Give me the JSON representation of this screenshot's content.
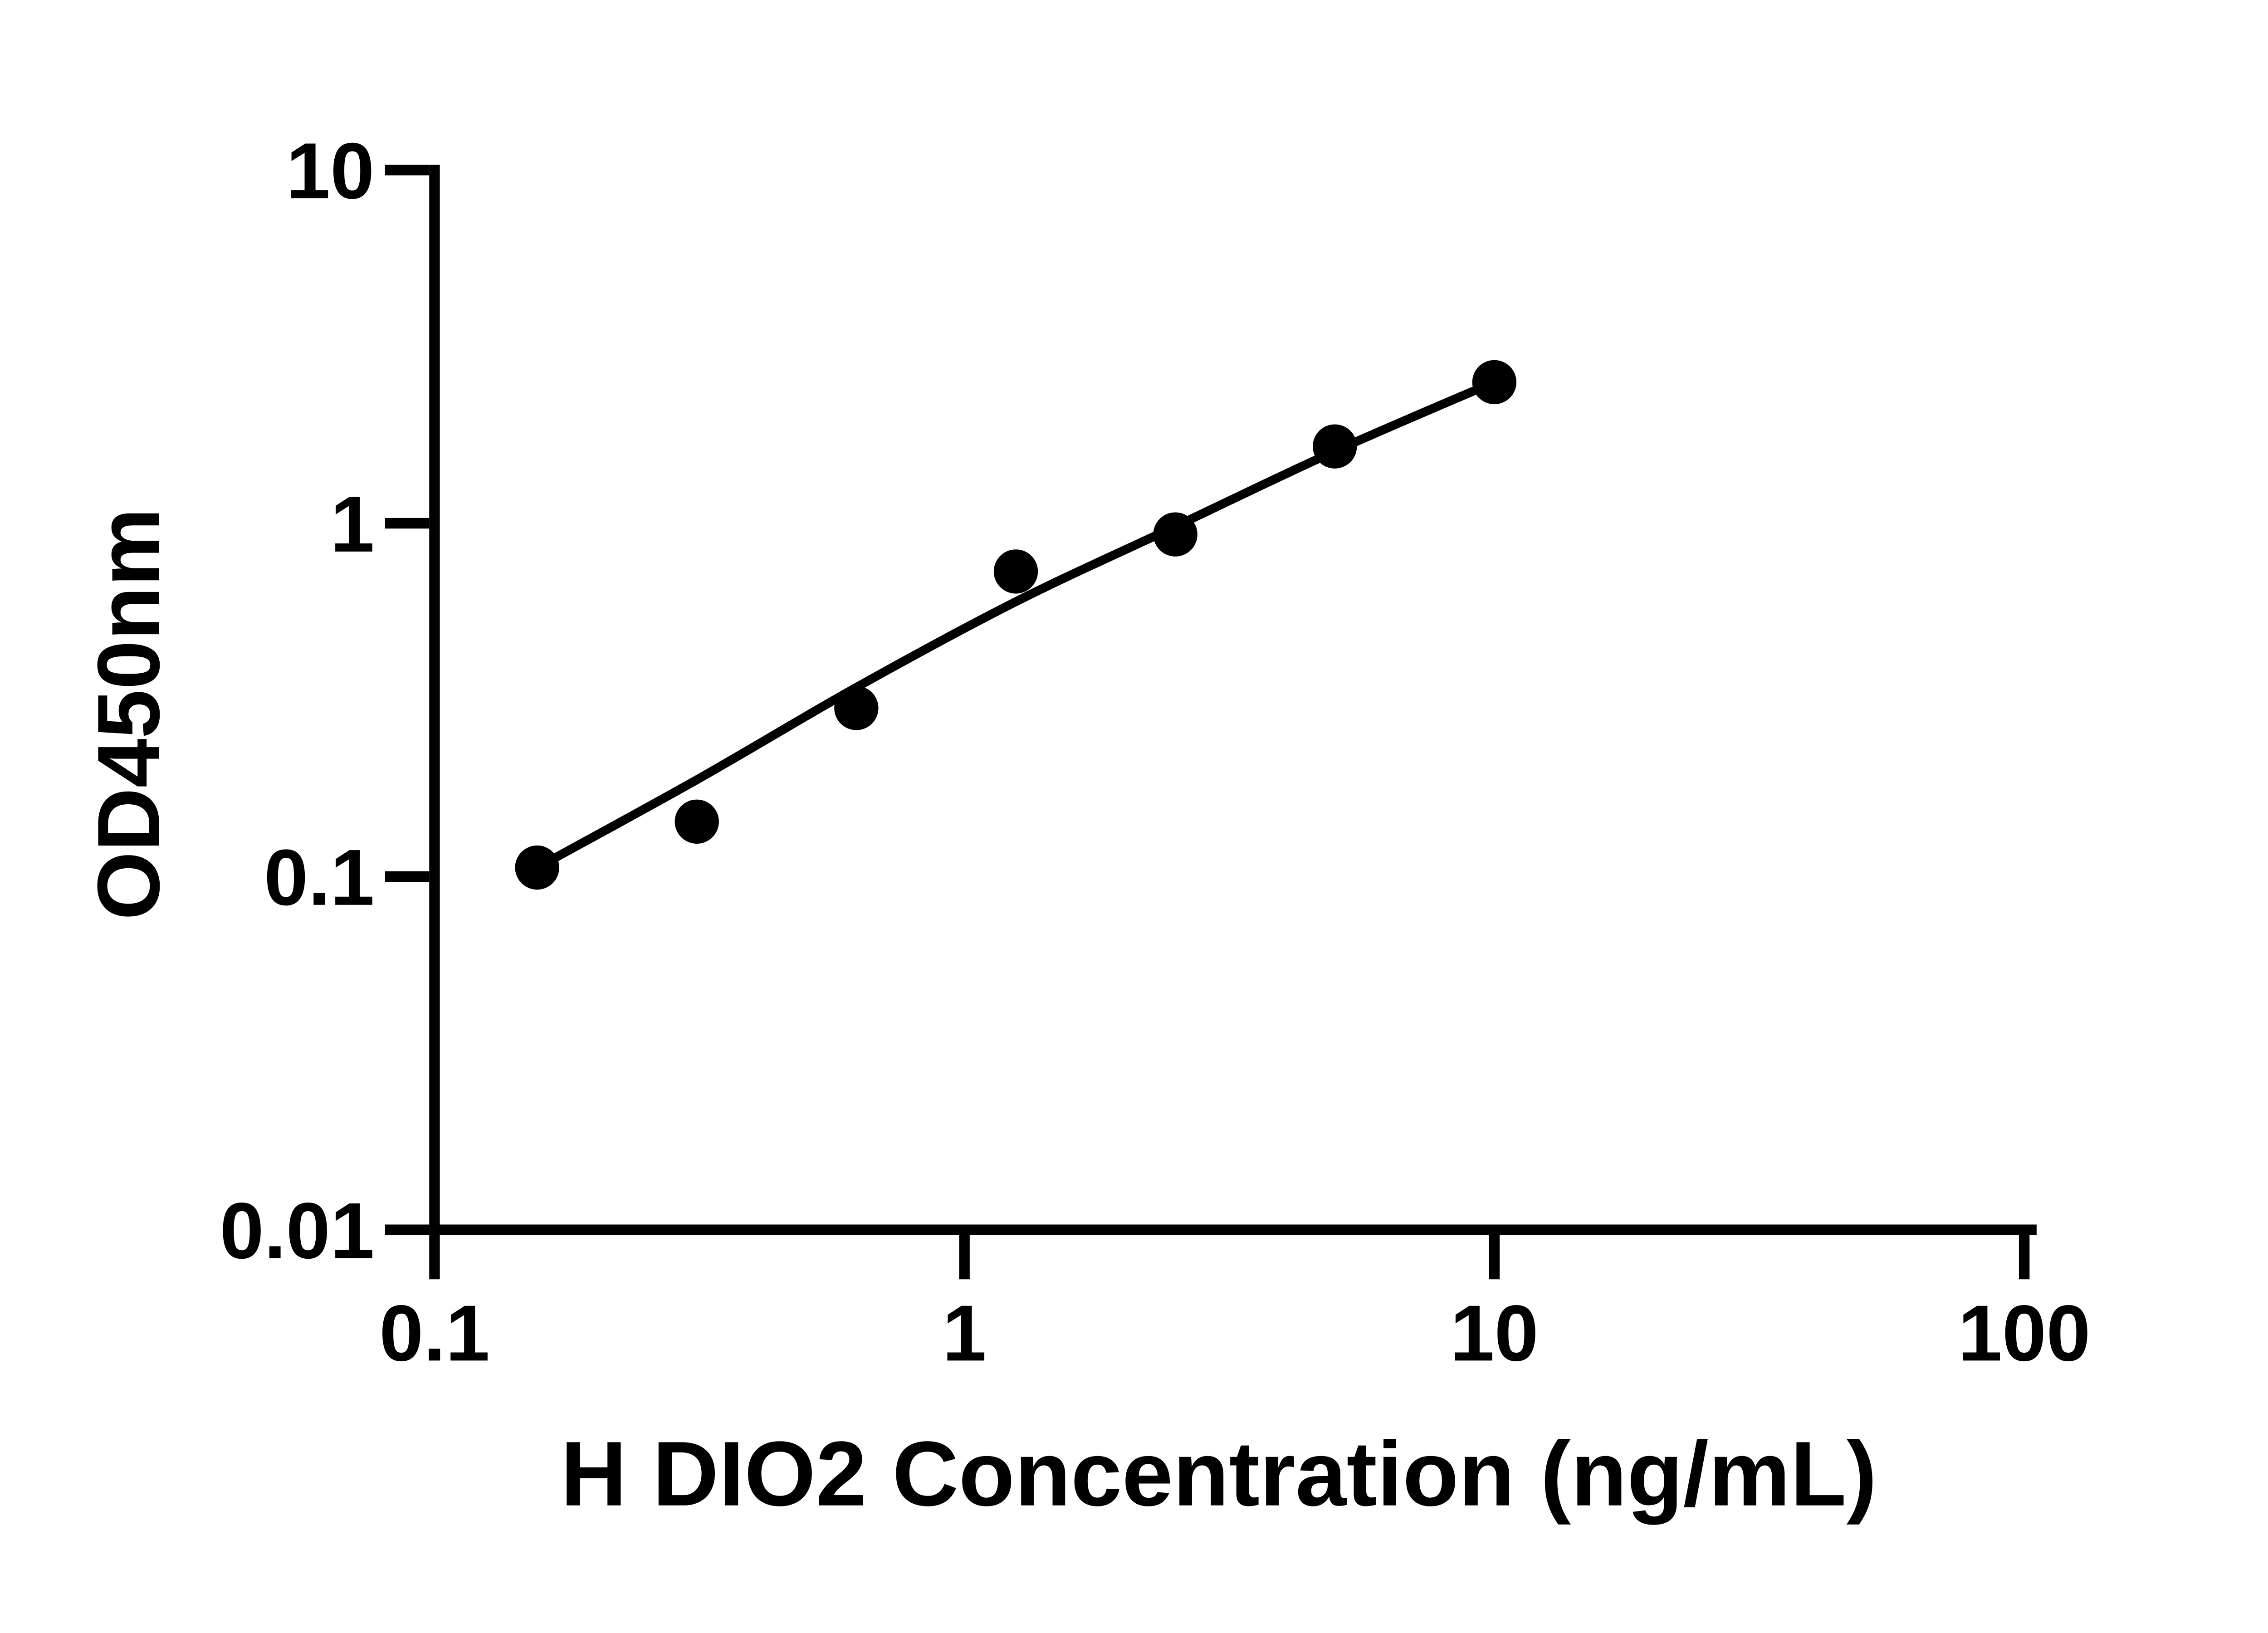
{
  "chart_data": {
    "type": "scatter",
    "title": "",
    "xlabel": "H DIO2 Concentration (ng/mL)",
    "ylabel": "OD450nm",
    "x_scale": "log",
    "y_scale": "log",
    "xlim": [
      0.1,
      100
    ],
    "ylim": [
      0.01,
      10
    ],
    "grid": false,
    "legend": null,
    "marker_color": "#000000",
    "line_color": "#000000",
    "background_color": "#ffffff",
    "x_ticks": [
      {
        "value": 0.1,
        "label": "0.1"
      },
      {
        "value": 1,
        "label": "1"
      },
      {
        "value": 10,
        "label": "10"
      },
      {
        "value": 100,
        "label": "100"
      }
    ],
    "y_ticks": [
      {
        "value": 10,
        "label": "10"
      },
      {
        "value": 1,
        "label": "1"
      },
      {
        "value": 0.1,
        "label": "0.1"
      },
      {
        "value": 0.01,
        "label": "0.01"
      }
    ],
    "points": [
      {
        "x": 0.15625,
        "y": 0.106
      },
      {
        "x": 0.3125,
        "y": 0.143
      },
      {
        "x": 0.625,
        "y": 0.3
      },
      {
        "x": 1.25,
        "y": 0.73
      },
      {
        "x": 2.5,
        "y": 0.93
      },
      {
        "x": 5,
        "y": 1.65
      },
      {
        "x": 10,
        "y": 2.51
      }
    ],
    "fit_curve": [
      {
        "x": 0.15625,
        "y": 0.106
      },
      {
        "x": 0.3125,
        "y": 0.188
      },
      {
        "x": 0.625,
        "y": 0.343
      },
      {
        "x": 1.25,
        "y": 0.6
      },
      {
        "x": 2.5,
        "y": 0.98
      },
      {
        "x": 5,
        "y": 1.6
      },
      {
        "x": 10,
        "y": 2.51
      }
    ]
  }
}
